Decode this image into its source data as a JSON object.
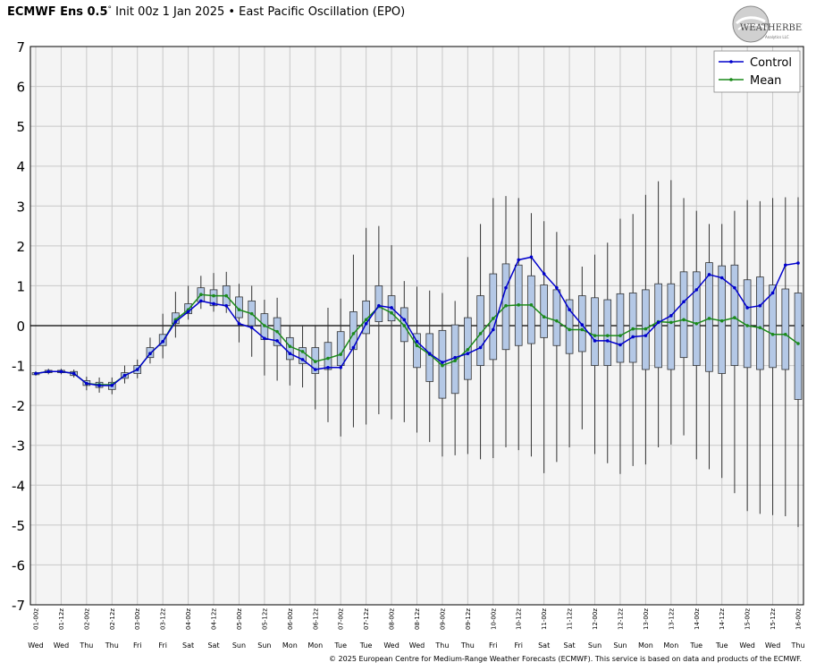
{
  "title": {
    "bold": "ECMWF Ens 0.5",
    "degree": "°",
    "rest": " Init 00z 1 Jan 2025 • East Pacific Oscillation (EPO)"
  },
  "logo": {
    "text": "WEATHERBELL",
    "subtext": "Analytics LLC"
  },
  "footer": "© 2025 European Centre for Medium-Range Weather Forecasts (ECMWF). This service is based on data and products of the ECMWF.",
  "colors": {
    "control": "#0000cc",
    "mean": "#1a8a1a",
    "box_fill": "#b4c8e6",
    "box_stroke": "#333333",
    "whisker": "#333333",
    "grid": "#c8c8c8",
    "plot_bg": "#f4f4f4"
  },
  "chart_data": {
    "type": "box",
    "ylim": [
      -7,
      7
    ],
    "yticks": [
      "7",
      "6",
      "5",
      "4",
      "3",
      "2",
      "1",
      "0",
      "-1",
      "-2",
      "-3",
      "-4",
      "-5",
      "-6",
      "-7"
    ],
    "grid": true,
    "legend_position": "top-right",
    "x_time_labels": [
      "01-00z",
      "01-12z",
      "02-00z",
      "02-12z",
      "03-00z",
      "03-12z",
      "04-00z",
      "04-12z",
      "05-00z",
      "05-12z",
      "06-00z",
      "06-12z",
      "07-00z",
      "07-12z",
      "08-00z",
      "08-12z",
      "09-00z",
      "09-12z",
      "10-00z",
      "10-12z",
      "11-00z",
      "11-12z",
      "12-00z",
      "12-12z",
      "13-00z",
      "13-12z",
      "14-00z",
      "14-12z",
      "15-00z",
      "15-12z",
      "16-00z"
    ],
    "x_day_labels": [
      "Wed",
      "Wed",
      "Thu",
      "Thu",
      "Fri",
      "Fri",
      "Sat",
      "Sat",
      "Sun",
      "Sun",
      "Mon",
      "Mon",
      "Tue",
      "Tue",
      "Wed",
      "Wed",
      "Thu",
      "Thu",
      "Fri",
      "Fri",
      "Sat",
      "Sat",
      "Sun",
      "Sun",
      "Mon",
      "Mon",
      "Tue",
      "Tue",
      "Wed",
      "Wed",
      "Thu"
    ],
    "series": [
      {
        "name": "Control",
        "values": [
          -1.2,
          -1.15,
          -1.15,
          -1.2,
          -1.45,
          -1.5,
          -1.5,
          -1.25,
          -1.1,
          -0.7,
          -0.4,
          0.1,
          0.35,
          0.62,
          0.55,
          0.5,
          0.05,
          -0.05,
          -0.32,
          -0.38,
          -0.7,
          -0.85,
          -1.1,
          -1.05,
          -1.05,
          -0.55,
          0.05,
          0.5,
          0.45,
          0.15,
          -0.4,
          -0.7,
          -0.92,
          -0.8,
          -0.7,
          -0.55,
          -0.1,
          0.95,
          1.65,
          1.72,
          1.3,
          0.95,
          0.4,
          0.02,
          -0.38,
          -0.38,
          -0.48,
          -0.28,
          -0.25,
          0.08,
          0.25,
          0.6,
          0.9,
          1.28,
          1.2,
          0.95,
          0.45,
          0.5,
          0.82,
          1.52,
          1.57
        ]
      },
      {
        "name": "Mean",
        "values": [
          -1.2,
          -1.15,
          -1.15,
          -1.2,
          -1.45,
          -1.48,
          -1.48,
          -1.25,
          -1.1,
          -0.7,
          -0.4,
          0.15,
          0.4,
          0.78,
          0.75,
          0.75,
          0.4,
          0.3,
          0.0,
          -0.15,
          -0.52,
          -0.65,
          -0.9,
          -0.82,
          -0.72,
          -0.2,
          0.15,
          0.48,
          0.32,
          0.0,
          -0.5,
          -0.72,
          -1.0,
          -0.88,
          -0.6,
          -0.2,
          0.18,
          0.5,
          0.52,
          0.52,
          0.22,
          0.12,
          -0.1,
          -0.1,
          -0.25,
          -0.25,
          -0.25,
          -0.08,
          -0.08,
          0.1,
          0.08,
          0.15,
          0.05,
          0.18,
          0.12,
          0.2,
          0.0,
          -0.05,
          -0.22,
          -0.22,
          -0.45
        ]
      },
      {
        "name": "Box top (75th pct)",
        "values": [
          -1.18,
          -1.12,
          -1.12,
          -1.15,
          -1.38,
          -1.42,
          -1.42,
          -1.18,
          -1.0,
          -0.55,
          -0.22,
          0.32,
          0.55,
          0.95,
          0.9,
          1.0,
          0.72,
          0.62,
          0.3,
          0.2,
          -0.3,
          -0.55,
          -0.55,
          -0.42,
          -0.15,
          0.35,
          0.62,
          1.0,
          0.75,
          0.45,
          -0.2,
          -0.2,
          -0.12,
          0.02,
          0.2,
          0.75,
          1.3,
          1.55,
          1.52,
          1.25,
          1.02,
          0.9,
          0.65,
          0.75,
          0.7,
          0.65,
          0.8,
          0.82,
          0.9,
          1.05,
          1.05,
          1.35,
          1.35,
          1.58,
          1.5,
          1.52,
          1.15,
          1.22,
          1.02,
          0.92,
          0.82
        ]
      },
      {
        "name": "Box bottom (25th pct)",
        "values": [
          -1.23,
          -1.18,
          -1.18,
          -1.25,
          -1.5,
          -1.55,
          -1.6,
          -1.32,
          -1.2,
          -0.8,
          -0.5,
          0.05,
          0.3,
          0.6,
          0.5,
          0.5,
          0.2,
          0.0,
          -0.35,
          -0.5,
          -0.85,
          -0.95,
          -1.2,
          -1.1,
          -1.0,
          -0.6,
          -0.2,
          0.1,
          0.12,
          -0.4,
          -1.05,
          -1.4,
          -1.82,
          -1.7,
          -1.35,
          -1.0,
          -0.85,
          -0.6,
          -0.5,
          -0.45,
          -0.3,
          -0.5,
          -0.7,
          -0.65,
          -1.0,
          -1.0,
          -0.92,
          -0.92,
          -1.1,
          -1.05,
          -1.1,
          -0.8,
          -1.0,
          -1.15,
          -1.2,
          -1.0,
          -1.05,
          -1.1,
          -1.05,
          -1.1,
          -1.85
        ]
      },
      {
        "name": "Whisker top (max)",
        "values": [
          -1.15,
          -1.08,
          -1.08,
          -1.1,
          -1.28,
          -1.3,
          -1.3,
          -1.0,
          -0.85,
          -0.3,
          0.3,
          0.85,
          1.0,
          1.25,
          1.32,
          1.35,
          1.05,
          1.0,
          0.65,
          0.7,
          0.0,
          0.0,
          0.0,
          0.45,
          0.68,
          1.78,
          2.45,
          2.5,
          2.02,
          1.12,
          0.98,
          0.88,
          0.82,
          0.62,
          1.72,
          2.55,
          3.2,
          3.25,
          3.2,
          2.82,
          2.62,
          2.35,
          2.02,
          1.48,
          1.78,
          2.08,
          2.68,
          2.8,
          3.28,
          3.62,
          3.65,
          3.2,
          2.88,
          2.55,
          2.55,
          2.88,
          3.15,
          3.12,
          3.2,
          3.22,
          3.22
        ]
      },
      {
        "name": "Whisker bottom (min)",
        "values": [
          -1.25,
          -1.22,
          -1.22,
          -1.3,
          -1.62,
          -1.68,
          -1.72,
          -1.45,
          -1.32,
          -0.95,
          -0.82,
          -0.3,
          0.15,
          0.42,
          0.35,
          0.32,
          -0.42,
          -0.78,
          -1.25,
          -1.38,
          -1.5,
          -1.55,
          -2.1,
          -2.42,
          -2.78,
          -2.55,
          -2.48,
          -2.22,
          -2.35,
          -2.42,
          -2.68,
          -2.92,
          -3.28,
          -3.25,
          -3.22,
          -3.35,
          -3.32,
          -3.05,
          -3.12,
          -3.28,
          -3.7,
          -3.42,
          -3.05,
          -2.6,
          -3.22,
          -3.45,
          -3.72,
          -3.52,
          -3.48,
          -3.05,
          -2.98,
          -2.75,
          -3.35,
          -3.6,
          -3.82,
          -4.2,
          -4.65,
          -4.72,
          -4.75,
          -4.78,
          -5.05
        ]
      }
    ]
  },
  "legend": [
    {
      "label": "Control",
      "series": "control"
    },
    {
      "label": "Mean",
      "series": "mean"
    }
  ]
}
